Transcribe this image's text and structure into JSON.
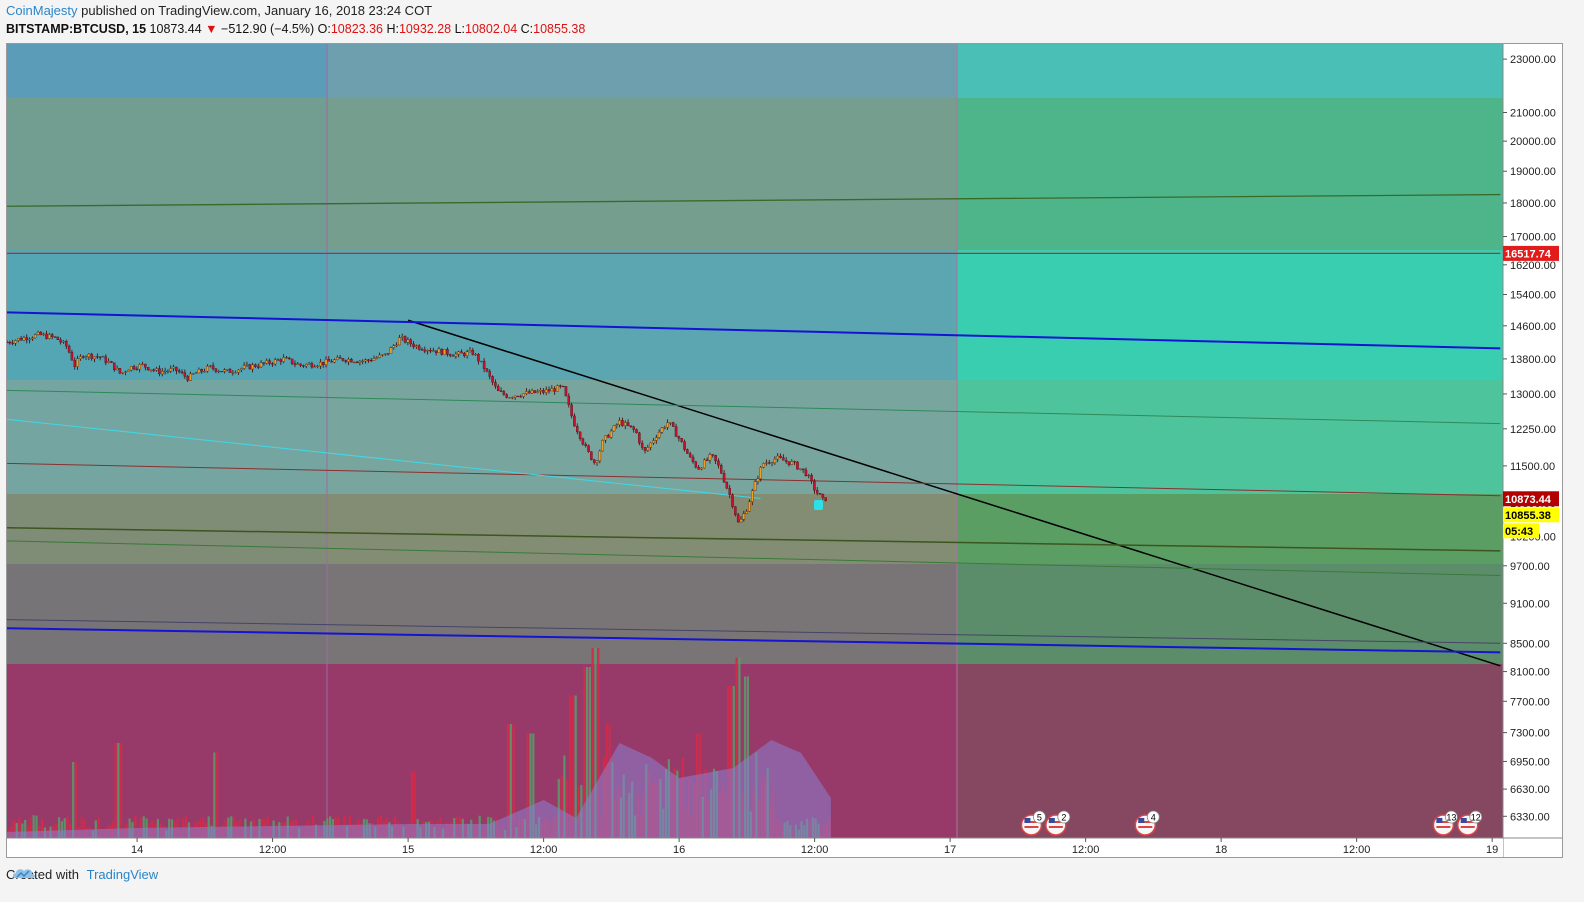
{
  "header": {
    "author": "CoinMajesty",
    "published_text": " published on TradingView.com, January 16, 2018 23:24 COT"
  },
  "ohlc": {
    "symbol": "BITSTAMP:BTCUSD, 15",
    "last": "10873.44",
    "change": "−512.90 (−4.5%)",
    "o_label": "O:",
    "o": "10823.36",
    "h_label": "H:",
    "h": "10932.28",
    "l_label": "L:",
    "l": "10802.04",
    "c_label": "C:",
    "c": "10855.38"
  },
  "footer": {
    "created": "Created with",
    "brand": "TradingView"
  },
  "colors": {
    "up": "#f0a020",
    "down": "#c8102e",
    "trendline": "#000000",
    "channel": "#1010d0"
  },
  "chart_data": {
    "type": "candlestick",
    "title": "BITSTAMP:BTCUSD, 15",
    "y_scale": "log",
    "ylim": [
      6100,
      23600
    ],
    "y_ticks": [
      "23000.00",
      "21000.00",
      "20000.00",
      "19000.00",
      "18000.00",
      "17000.00",
      "16200.00",
      "15400.00",
      "14600.00",
      "13800.00",
      "13000.00",
      "12250.00",
      "11500.00",
      "10800.00",
      "10200.00",
      "9700.00",
      "9100.00",
      "8500.00",
      "8100.00",
      "7700.00",
      "7300.00",
      "6950.00",
      "6630.00",
      "6330.00"
    ],
    "x_ticks": [
      "14",
      "12:00",
      "15",
      "12:00",
      "16",
      "12:00",
      "17",
      "12:00",
      "18",
      "12:00",
      "19"
    ],
    "x_range_days": [
      13.52,
      19.04
    ],
    "price_labels": [
      {
        "value": 16517.74,
        "text": "16517.74",
        "bg": "#e21b1b",
        "fg": "#ffffff"
      },
      {
        "value": 10873.44,
        "text": "10873.44",
        "bg": "#b30000",
        "fg": "#ffffff"
      },
      {
        "value": 10855.38,
        "text": "10855.38",
        "bg": "#ffff00",
        "fg": "#000000"
      },
      {
        "value": 10560,
        "text": "05:43",
        "bg": "#ffff00",
        "fg": "#000000"
      }
    ],
    "price_path": [
      [
        13.52,
        14200
      ],
      [
        13.58,
        14300
      ],
      [
        13.64,
        14380
      ],
      [
        13.7,
        14300
      ],
      [
        13.74,
        14100
      ],
      [
        13.77,
        13650
      ],
      [
        13.8,
        13900
      ],
      [
        13.86,
        13850
      ],
      [
        13.9,
        13700
      ],
      [
        13.94,
        13450
      ],
      [
        13.97,
        13600
      ],
      [
        14.02,
        13650
      ],
      [
        14.08,
        13500
      ],
      [
        14.14,
        13550
      ],
      [
        14.19,
        13350
      ],
      [
        14.21,
        13450
      ],
      [
        14.27,
        13600
      ],
      [
        14.33,
        13500
      ],
      [
        14.4,
        13600
      ],
      [
        14.48,
        13700
      ],
      [
        14.54,
        13800
      ],
      [
        14.6,
        13650
      ],
      [
        14.68,
        13700
      ],
      [
        14.76,
        13800
      ],
      [
        14.84,
        13750
      ],
      [
        14.92,
        13900
      ],
      [
        14.97,
        14300
      ],
      [
        15.03,
        14100
      ],
      [
        15.1,
        14000
      ],
      [
        15.18,
        13900
      ],
      [
        15.24,
        13950
      ],
      [
        15.28,
        13600
      ],
      [
        15.33,
        13050
      ],
      [
        15.37,
        12950
      ],
      [
        15.42,
        13000
      ],
      [
        15.5,
        13050
      ],
      [
        15.57,
        13150
      ],
      [
        15.61,
        12400
      ],
      [
        15.66,
        11800
      ],
      [
        15.69,
        11550
      ],
      [
        15.72,
        12000
      ],
      [
        15.78,
        12400
      ],
      [
        15.84,
        12200
      ],
      [
        15.87,
        11750
      ],
      [
        15.92,
        12150
      ],
      [
        15.96,
        12400
      ],
      [
        16.0,
        12050
      ],
      [
        16.04,
        11650
      ],
      [
        16.07,
        11450
      ],
      [
        16.12,
        11700
      ],
      [
        16.15,
        11450
      ],
      [
        16.19,
        10900
      ],
      [
        16.22,
        10400
      ],
      [
        16.25,
        10700
      ],
      [
        16.28,
        11150
      ],
      [
        16.31,
        11550
      ],
      [
        16.36,
        11650
      ],
      [
        16.42,
        11550
      ],
      [
        16.47,
        11350
      ],
      [
        16.5,
        11050
      ],
      [
        16.53,
        10850
      ],
      [
        16.55,
        10900
      ]
    ],
    "overlay_lines": [
      {
        "name": "downtrend",
        "color": "#000000",
        "width": 1.5,
        "points": [
          [
            15.0,
            14740
          ],
          [
            19.03,
            8180
          ]
        ]
      },
      {
        "name": "channel-top",
        "color": "#1414d2",
        "width": 2,
        "points": [
          [
            13.52,
            14940
          ],
          [
            19.03,
            14050
          ]
        ]
      },
      {
        "name": "channel-bottom",
        "color": "#1414d2",
        "width": 2,
        "points": [
          [
            13.52,
            8720
          ],
          [
            19.03,
            8370
          ]
        ]
      },
      {
        "name": "fib-top",
        "color": "#3a6a2a",
        "width": 1.3,
        "points": [
          [
            13.52,
            17900
          ],
          [
            19.03,
            18260
          ]
        ]
      },
      {
        "name": "fib-a",
        "color": "#2d8a5a",
        "width": 1,
        "points": [
          [
            13.52,
            13080
          ],
          [
            19.03,
            12360
          ]
        ]
      },
      {
        "name": "fib-b",
        "color": "#8a3030",
        "width": 1,
        "points": [
          [
            13.52,
            11550
          ],
          [
            19.03,
            10930
          ]
        ]
      },
      {
        "name": "fib-c",
        "color": "#3d5520",
        "width": 1.5,
        "points": [
          [
            13.52,
            10350
          ],
          [
            19.03,
            9950
          ]
        ]
      },
      {
        "name": "fib-d",
        "color": "#3a7a3a",
        "width": 1,
        "points": [
          [
            13.52,
            10120
          ],
          [
            19.03,
            9540
          ]
        ]
      },
      {
        "name": "fib-e",
        "color": "#444466",
        "width": 1,
        "points": [
          [
            13.52,
            8850
          ],
          [
            19.03,
            8500
          ]
        ]
      },
      {
        "name": "cyan-line",
        "color": "#40d8e8",
        "width": 1,
        "points": [
          [
            13.52,
            12450
          ],
          [
            16.3,
            10880
          ]
        ]
      },
      {
        "name": "red-level",
        "color": "#e21b1b",
        "width": 1.2,
        "points": [
          [
            13.52,
            16517.74
          ],
          [
            19.03,
            16517.74
          ]
        ]
      }
    ],
    "event_markers": [
      {
        "x": 17.3,
        "label": "5"
      },
      {
        "x": 17.39,
        "label": "2"
      },
      {
        "x": 17.72,
        "label": "4"
      },
      {
        "x": 18.82,
        "label": "13"
      },
      {
        "x": 18.91,
        "label": "12"
      }
    ]
  }
}
